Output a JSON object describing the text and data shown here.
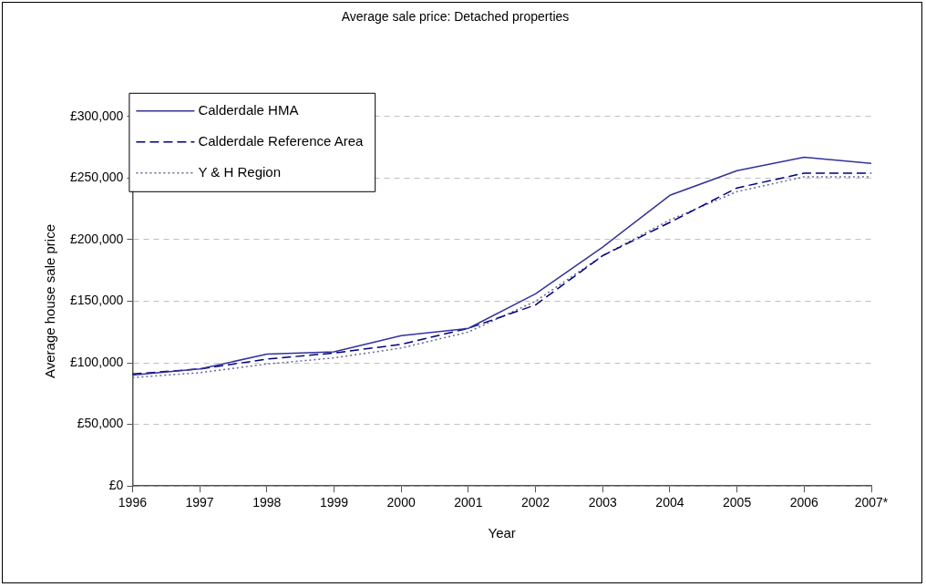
{
  "chart_data": {
    "type": "line",
    "title": "Average sale price: Detached properties",
    "xlabel": "Year",
    "ylabel": "Average house sale price",
    "categories": [
      "1996",
      "1997",
      "1998",
      "1999",
      "2000",
      "2001",
      "2002",
      "2003",
      "2004",
      "2005",
      "2006",
      "2007*"
    ],
    "series": [
      {
        "name": "Calderdale HMA",
        "color": "#333399",
        "line_style": "solid",
        "values": [
          90000,
          95000,
          107000,
          109000,
          122000,
          128000,
          156000,
          194000,
          236000,
          256000,
          267000,
          262000
        ]
      },
      {
        "name": "Calderdale Reference Area",
        "color": "#000080",
        "line_style": "dashed",
        "values": [
          91000,
          95000,
          103000,
          108000,
          115000,
          128000,
          147000,
          187000,
          214000,
          242000,
          254000,
          254000
        ]
      },
      {
        "name": "Y & H Region",
        "color": "#666699",
        "line_style": "dotted",
        "values": [
          88000,
          92000,
          99000,
          104000,
          112000,
          125000,
          150000,
          187000,
          216000,
          239000,
          251000,
          251000
        ]
      }
    ],
    "ylim": [
      0,
      300000
    ],
    "yticks": [
      {
        "value": 0,
        "label": "£0"
      },
      {
        "value": 50000,
        "label": "£50,000"
      },
      {
        "value": 100000,
        "label": "£100,000"
      },
      {
        "value": 150000,
        "label": "£150,000"
      },
      {
        "value": 200000,
        "label": "£200,000"
      },
      {
        "value": 250000,
        "label": "£250,000"
      },
      {
        "value": 300000,
        "label": "£300,000"
      }
    ],
    "grid": "y",
    "legend": "top left",
    "marker": "none"
  }
}
